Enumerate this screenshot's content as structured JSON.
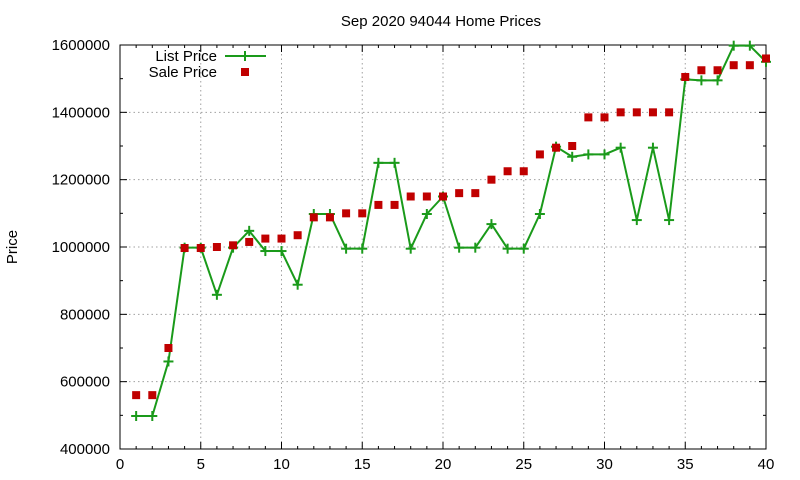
{
  "chart_data": {
    "type": "line",
    "title": "Sep 2020 94044 Home Prices",
    "xlabel": "",
    "ylabel": "Price",
    "xlim": [
      0,
      40
    ],
    "ylim": [
      400000,
      1600000
    ],
    "x_ticks": [
      "0",
      "5",
      "10",
      "15",
      "20",
      "25",
      "30",
      "35",
      "40"
    ],
    "y_ticks": [
      "400000",
      "600000",
      "800000",
      "1000000",
      "1200000",
      "1400000",
      "1600000"
    ],
    "grid": true,
    "legend_position": "top-left",
    "series": [
      {
        "name": "List Price",
        "style": "linespoints",
        "marker": "plus",
        "color": "#1a9a1a",
        "x": [
          1,
          2,
          3,
          4,
          5,
          6,
          7,
          8,
          9,
          10,
          11,
          12,
          13,
          14,
          15,
          16,
          17,
          18,
          19,
          20,
          21,
          22,
          23,
          24,
          25,
          26,
          27,
          28,
          29,
          30,
          31,
          32,
          33,
          34,
          35,
          36,
          37,
          38,
          39,
          40
        ],
        "values": [
          498000,
          498000,
          660000,
          998000,
          998000,
          858000,
          998000,
          1048000,
          988000,
          988000,
          888000,
          1098000,
          1098000,
          995000,
          995000,
          1250000,
          1250000,
          995000,
          1098000,
          1150000,
          998000,
          998000,
          1068000,
          995000,
          995000,
          1098000,
          1298000,
          1268000,
          1275000,
          1275000,
          1295000,
          1080000,
          1295000,
          1080000,
          1498000,
          1495000,
          1495000,
          1598000,
          1598000,
          1550000
        ]
      },
      {
        "name": "Sale Price",
        "style": "points",
        "marker": "square",
        "color": "#c00000",
        "x": [
          1,
          2,
          3,
          4,
          5,
          6,
          7,
          8,
          9,
          10,
          11,
          12,
          13,
          14,
          15,
          16,
          17,
          18,
          19,
          20,
          21,
          22,
          23,
          24,
          25,
          26,
          27,
          28,
          29,
          30,
          31,
          32,
          33,
          34,
          35,
          36,
          37,
          38,
          39,
          40
        ],
        "values": [
          560000,
          560000,
          700000,
          997000,
          997000,
          1000000,
          1005000,
          1015000,
          1025000,
          1025000,
          1035000,
          1088000,
          1088000,
          1100000,
          1100000,
          1125000,
          1125000,
          1150000,
          1150000,
          1150000,
          1160000,
          1160000,
          1200000,
          1225000,
          1225000,
          1275000,
          1295000,
          1300000,
          1385000,
          1385000,
          1400000,
          1400000,
          1400000,
          1400000,
          1505000,
          1525000,
          1525000,
          1540000,
          1540000,
          1560000
        ]
      }
    ]
  }
}
